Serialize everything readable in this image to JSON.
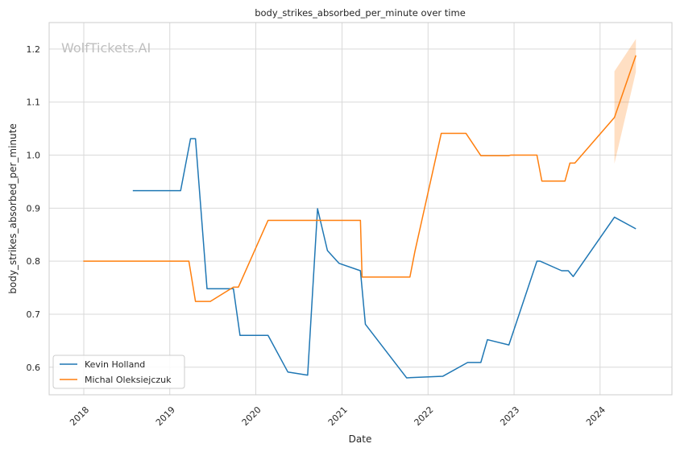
{
  "chart_data": {
    "type": "line",
    "title": "body_strikes_absorbed_per_minute over time",
    "xlabel": "Date",
    "ylabel": "body_strikes_absorbed_per_minute",
    "watermark": "WolfTickets.AI",
    "x_ticks": [
      "2018",
      "2019",
      "2020",
      "2021",
      "2022",
      "2023",
      "2024"
    ],
    "y_ticks": [
      "0.6",
      "0.7",
      "0.8",
      "0.9",
      "1.0",
      "1.1",
      "1.2"
    ],
    "xlim": [
      "2017-08-07",
      "2024-11-01"
    ],
    "ylim": [
      0.548,
      1.25
    ],
    "grid": true,
    "legend_position": "lower-left",
    "series": [
      {
        "name": "Kevin Holland",
        "color": "#1f77b4",
        "points": [
          [
            "2018-07-28",
            0.933
          ],
          [
            "2019-02-16",
            0.933
          ],
          [
            "2019-03-30",
            1.031
          ],
          [
            "2019-04-20",
            1.031
          ],
          [
            "2019-06-08",
            0.748
          ],
          [
            "2019-09-28",
            0.748
          ],
          [
            "2019-10-26",
            0.66
          ],
          [
            "2020-02-22",
            0.66
          ],
          [
            "2020-05-16",
            0.591
          ],
          [
            "2020-08-08",
            0.585
          ],
          [
            "2020-09-19",
            0.899
          ],
          [
            "2020-10-31",
            0.82
          ],
          [
            "2020-12-19",
            0.796
          ],
          [
            "2021-03-20",
            0.782
          ],
          [
            "2021-04-10",
            0.681
          ],
          [
            "2021-10-02",
            0.58
          ],
          [
            "2022-03-05",
            0.583
          ],
          [
            "2022-06-18",
            0.609
          ],
          [
            "2022-08-13",
            0.609
          ],
          [
            "2022-09-10",
            0.652
          ],
          [
            "2022-12-10",
            0.642
          ],
          [
            "2023-04-08",
            0.8
          ],
          [
            "2023-04-22",
            0.8
          ],
          [
            "2023-07-22",
            0.782
          ],
          [
            "2023-08-19",
            0.782
          ],
          [
            "2023-09-09",
            0.771
          ],
          [
            "2024-03-02",
            0.883
          ],
          [
            "2024-06-01",
            0.861
          ]
        ]
      },
      {
        "name": "Michal Oleksiejczuk",
        "color": "#ff7f0e",
        "points": [
          [
            "2017-12-30",
            0.8
          ],
          [
            "2019-03-23",
            0.8
          ],
          [
            "2019-04-20",
            0.724
          ],
          [
            "2019-06-22",
            0.724
          ],
          [
            "2019-09-28",
            0.751
          ],
          [
            "2019-10-19",
            0.751
          ],
          [
            "2020-02-22",
            0.877
          ],
          [
            "2021-03-20",
            0.877
          ],
          [
            "2021-03-27",
            0.77
          ],
          [
            "2021-10-16",
            0.77
          ],
          [
            "2021-11-06",
            0.818
          ],
          [
            "2022-02-26",
            1.041
          ],
          [
            "2022-06-11",
            1.041
          ],
          [
            "2022-08-13",
            0.999
          ],
          [
            "2022-12-10",
            0.999
          ],
          [
            "2022-12-17",
            1.0
          ],
          [
            "2023-04-08",
            1.0
          ],
          [
            "2023-04-29",
            0.951
          ],
          [
            "2023-08-05",
            0.951
          ],
          [
            "2023-08-26",
            0.985
          ],
          [
            "2023-09-16",
            0.985
          ],
          [
            "2024-03-02",
            1.071
          ],
          [
            "2024-06-01",
            1.188
          ]
        ],
        "band": [
          [
            "2024-03-02",
            1.158,
            0.984
          ],
          [
            "2024-06-01",
            1.219,
            1.157
          ]
        ]
      }
    ]
  }
}
